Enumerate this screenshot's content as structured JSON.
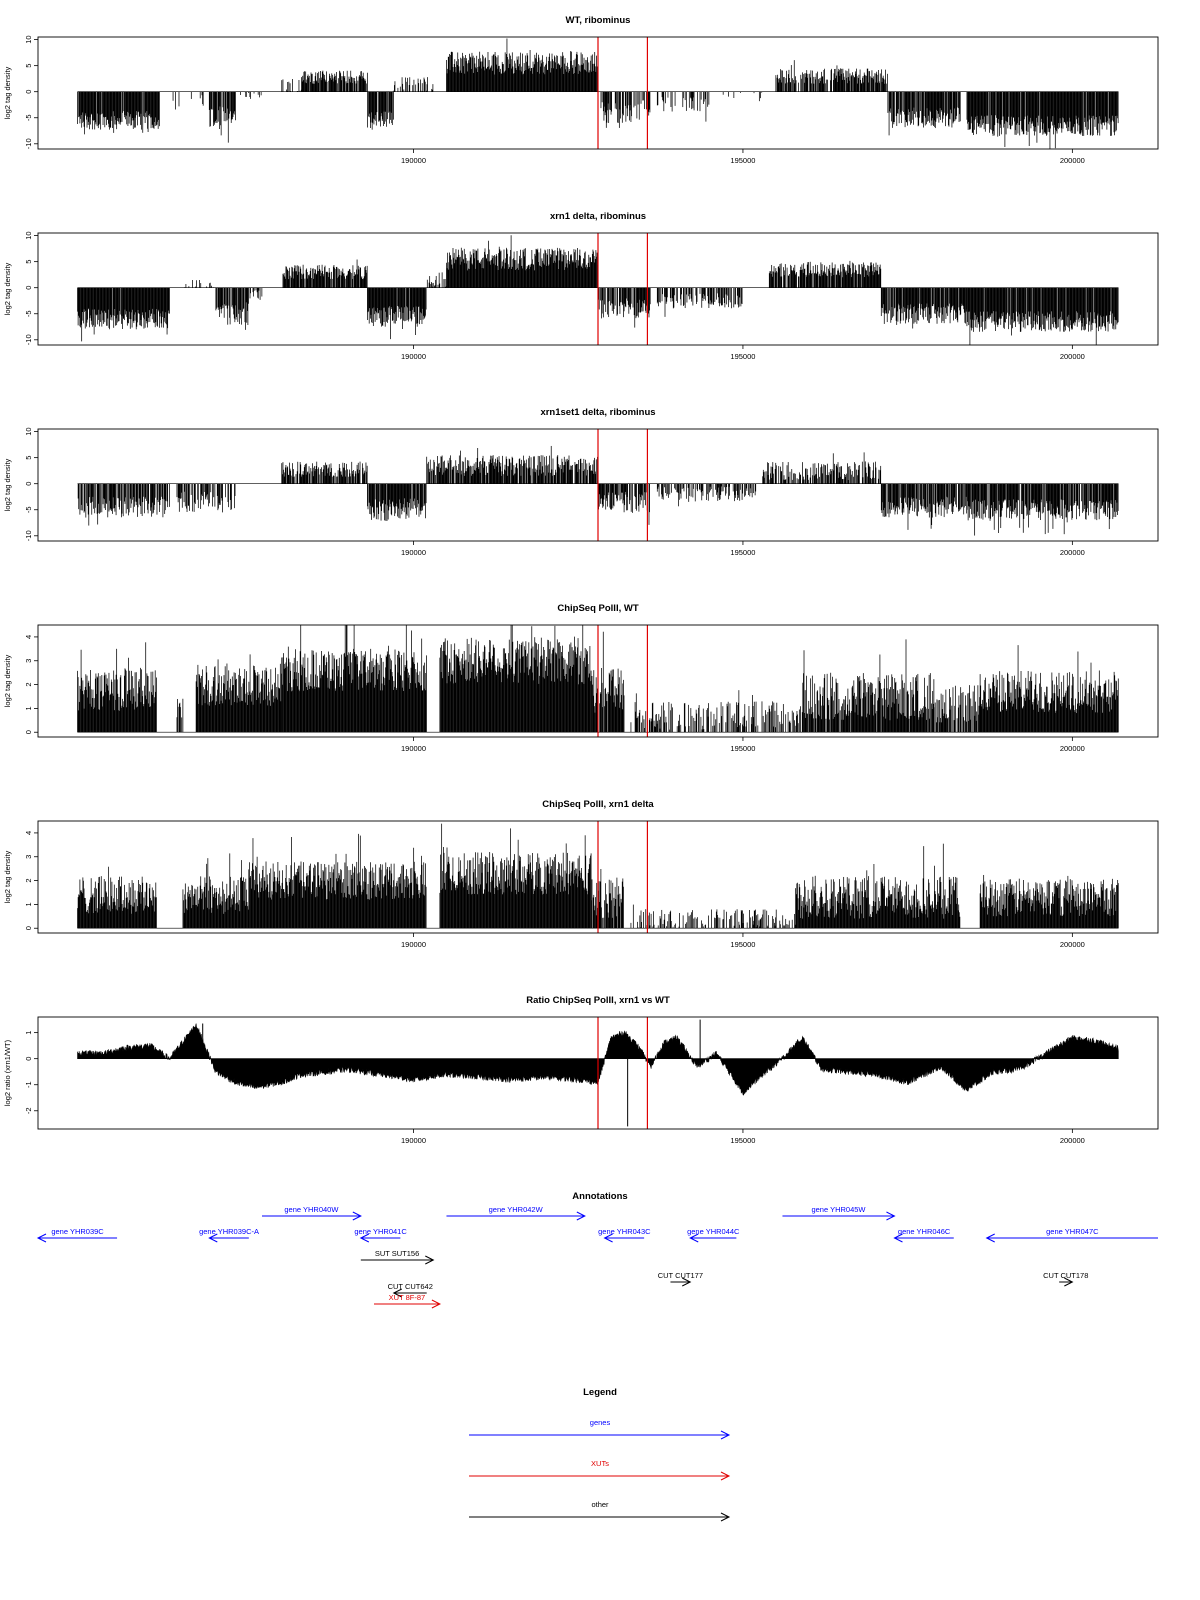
{
  "chart_data": [
    {
      "type": "bar",
      "title": "WT, ribominus",
      "xlabel": "",
      "ylabel": "log2 tag density",
      "xlim": [
        184300,
        201300
      ],
      "ylim": [
        -11,
        10.5
      ],
      "yticks": [
        10,
        5,
        0,
        -5,
        -10
      ],
      "yticklabels": [
        "10",
        "5",
        "0",
        "-5",
        "-10"
      ],
      "xticks": [
        190000,
        195000,
        200000
      ],
      "xticklabels": [
        "190000",
        "195000",
        "200000"
      ],
      "grid": false,
      "markers_x": [
        192800,
        193550
      ],
      "marker_color": "#e00000",
      "series": [
        {
          "color": "#000000",
          "segments": [
            {
              "start": 184900,
              "end": 186150,
              "level": -5.5,
              "noise": 1.8,
              "density": 0.95
            },
            {
              "start": 186350,
              "end": 186450,
              "level": -3,
              "noise": 1.5,
              "density": 0.3
            },
            {
              "start": 186600,
              "end": 186900,
              "level": -1.5,
              "noise": 1.2,
              "density": 0.2
            },
            {
              "start": 187300,
              "end": 187700,
              "level": -0.8,
              "noise": 0.8,
              "density": 0.2
            },
            {
              "start": 186900,
              "end": 187300,
              "level": -5,
              "noise": 2.2,
              "density": 0.9
            },
            {
              "start": 188000,
              "end": 188300,
              "level": 1.2,
              "noise": 1.5,
              "density": 0.5
            },
            {
              "start": 188300,
              "end": 189300,
              "level": 2.8,
              "noise": 1.3,
              "density": 0.8
            },
            {
              "start": 189300,
              "end": 189700,
              "level": -5.5,
              "noise": 1.8,
              "density": 0.9
            },
            {
              "start": 189700,
              "end": 190300,
              "level": 1.5,
              "noise": 1.5,
              "density": 0.4
            },
            {
              "start": 190500,
              "end": 192800,
              "level": 5.5,
              "noise": 2.2,
              "density": 1.0
            },
            {
              "start": 192800,
              "end": 193300,
              "level": -4,
              "noise": 2,
              "density": 0.7
            },
            {
              "start": 193300,
              "end": 193600,
              "level": -3.5,
              "noise": 2,
              "density": 0.5
            },
            {
              "start": 193700,
              "end": 194500,
              "level": -2.5,
              "noise": 1.5,
              "density": 0.35
            },
            {
              "start": 194700,
              "end": 195300,
              "level": -1,
              "noise": 1,
              "density": 0.2
            },
            {
              "start": 195500,
              "end": 197200,
              "level": 3,
              "noise": 1.5,
              "density": 0.85
            },
            {
              "start": 197200,
              "end": 198300,
              "level": -5,
              "noise": 2,
              "density": 0.9
            },
            {
              "start": 198400,
              "end": 200700,
              "level": -6.5,
              "noise": 2,
              "density": 0.95
            }
          ]
        }
      ]
    },
    {
      "type": "bar",
      "title": "xrn1 delta, ribominus",
      "xlabel": "",
      "ylabel": "log2 tag density",
      "xlim": [
        184300,
        201300
      ],
      "ylim": [
        -11,
        10.5
      ],
      "yticks": [
        10,
        5,
        0,
        -5,
        -10
      ],
      "yticklabels": [
        "10",
        "5",
        "0",
        "-5",
        "-10"
      ],
      "xticks": [
        190000,
        195000,
        200000
      ],
      "xticklabels": [
        "190000",
        "195000",
        "200000"
      ],
      "grid": false,
      "markers_x": [
        192800,
        193550
      ],
      "marker_color": "#e00000",
      "series": [
        {
          "color": "#000000",
          "segments": [
            {
              "start": 184900,
              "end": 186300,
              "level": -6,
              "noise": 2,
              "density": 0.97
            },
            {
              "start": 186500,
              "end": 187000,
              "level": 0.8,
              "noise": 1,
              "density": 0.3
            },
            {
              "start": 187000,
              "end": 187500,
              "level": -5,
              "noise": 2.2,
              "density": 0.9
            },
            {
              "start": 187500,
              "end": 187700,
              "level": -1.5,
              "noise": 1,
              "density": 0.5
            },
            {
              "start": 188000,
              "end": 189300,
              "level": 3,
              "noise": 1.4,
              "density": 0.9
            },
            {
              "start": 189300,
              "end": 190200,
              "level": -5.5,
              "noise": 2,
              "density": 0.95
            },
            {
              "start": 190200,
              "end": 190500,
              "level": 1.5,
              "noise": 1.5,
              "density": 0.5
            },
            {
              "start": 190500,
              "end": 192800,
              "level": 5.5,
              "noise": 2.2,
              "density": 1.0
            },
            {
              "start": 192800,
              "end": 193600,
              "level": -4,
              "noise": 2,
              "density": 0.75
            },
            {
              "start": 193700,
              "end": 195000,
              "level": -2.5,
              "noise": 1.5,
              "density": 0.6
            },
            {
              "start": 195400,
              "end": 197100,
              "level": 3.5,
              "noise": 1.5,
              "density": 0.9
            },
            {
              "start": 197100,
              "end": 198400,
              "level": -5,
              "noise": 2,
              "density": 0.95
            },
            {
              "start": 198400,
              "end": 200700,
              "level": -6.5,
              "noise": 2,
              "density": 0.97
            }
          ]
        }
      ]
    },
    {
      "type": "bar",
      "title": "xrn1set1 delta, ribominus",
      "xlabel": "",
      "ylabel": "log2 tag density",
      "xlim": [
        184300,
        201300
      ],
      "ylim": [
        -11,
        10.5
      ],
      "yticks": [
        10,
        5,
        0,
        -5,
        -10
      ],
      "yticklabels": [
        "10",
        "5",
        "0",
        "-5",
        "-10"
      ],
      "xticks": [
        190000,
        195000,
        200000
      ],
      "xticklabels": [
        "190000",
        "195000",
        "200000"
      ],
      "grid": false,
      "markers_x": [
        192800,
        193550
      ],
      "marker_color": "#e00000",
      "series": [
        {
          "color": "#000000",
          "segments": [
            {
              "start": 184900,
              "end": 186300,
              "level": -4.5,
              "noise": 2,
              "density": 0.75
            },
            {
              "start": 186400,
              "end": 187300,
              "level": -3.5,
              "noise": 2,
              "density": 0.6
            },
            {
              "start": 188000,
              "end": 189300,
              "level": 2.8,
              "noise": 1.5,
              "density": 0.85
            },
            {
              "start": 189300,
              "end": 190200,
              "level": -5,
              "noise": 2.2,
              "density": 0.9
            },
            {
              "start": 190200,
              "end": 192800,
              "level": 3.5,
              "noise": 2,
              "density": 0.85
            },
            {
              "start": 192800,
              "end": 193600,
              "level": -3.5,
              "noise": 2,
              "density": 0.7
            },
            {
              "start": 193700,
              "end": 195200,
              "level": -2,
              "noise": 1.5,
              "density": 0.5
            },
            {
              "start": 195300,
              "end": 197100,
              "level": 2.5,
              "noise": 1.8,
              "density": 0.7
            },
            {
              "start": 197100,
              "end": 198400,
              "level": -4.5,
              "noise": 2,
              "density": 0.85
            },
            {
              "start": 198400,
              "end": 200700,
              "level": -5,
              "noise": 2,
              "density": 0.85
            }
          ]
        }
      ]
    },
    {
      "type": "bar",
      "title": "ChipSeq PolII, WT",
      "xlabel": "",
      "ylabel": "log2 tag density",
      "xlim": [
        184300,
        201300
      ],
      "ylim": [
        -0.2,
        4.5
      ],
      "yticks": [
        0,
        1,
        2,
        3,
        4
      ],
      "yticklabels": [
        "0",
        "1",
        "2",
        "3",
        "4"
      ],
      "xticks": [
        190000,
        195000,
        200000
      ],
      "xticklabels": [
        "190000",
        "195000",
        "200000"
      ],
      "grid": false,
      "markers_x": [
        192800,
        193550
      ],
      "marker_color": "#e00000",
      "series": [
        {
          "color": "#000000",
          "segments": [
            {
              "start": 184900,
              "end": 186100,
              "level": 1.8,
              "noise": 0.9,
              "density": 1.0
            },
            {
              "start": 186400,
              "end": 186500,
              "level": 1.0,
              "noise": 0.5,
              "density": 0.5
            },
            {
              "start": 186700,
              "end": 188000,
              "level": 2.0,
              "noise": 0.9,
              "density": 1.0
            },
            {
              "start": 188000,
              "end": 190200,
              "level": 2.6,
              "noise": 0.9,
              "density": 1.0
            },
            {
              "start": 190400,
              "end": 192700,
              "level": 3.0,
              "noise": 1.0,
              "density": 1.0
            },
            {
              "start": 192700,
              "end": 193200,
              "level": 1.8,
              "noise": 1.0,
              "density": 0.9
            },
            {
              "start": 193300,
              "end": 195900,
              "level": 0.7,
              "noise": 0.6,
              "density": 0.5
            },
            {
              "start": 195900,
              "end": 197900,
              "level": 1.5,
              "noise": 1.0,
              "density": 0.95
            },
            {
              "start": 197900,
              "end": 198600,
              "level": 1.2,
              "noise": 0.8,
              "density": 0.8
            },
            {
              "start": 198600,
              "end": 200700,
              "level": 1.7,
              "noise": 0.9,
              "density": 1.0
            }
          ]
        }
      ]
    },
    {
      "type": "bar",
      "title": "ChipSeq PolII, xrn1 delta",
      "xlabel": "",
      "ylabel": "log2 tag density",
      "xlim": [
        184300,
        201300
      ],
      "ylim": [
        -0.2,
        4.5
      ],
      "yticks": [
        0,
        1,
        2,
        3,
        4
      ],
      "yticklabels": [
        "0",
        "1",
        "2",
        "3",
        "4"
      ],
      "xticks": [
        190000,
        195000,
        200000
      ],
      "xticklabels": [
        "190000",
        "195000",
        "200000"
      ],
      "grid": false,
      "markers_x": [
        192800,
        193550
      ],
      "marker_color": "#e00000",
      "series": [
        {
          "color": "#000000",
          "segments": [
            {
              "start": 184900,
              "end": 186100,
              "level": 1.4,
              "noise": 0.8,
              "density": 1.0
            },
            {
              "start": 186500,
              "end": 187500,
              "level": 1.4,
              "noise": 0.8,
              "density": 1.0
            },
            {
              "start": 187500,
              "end": 190200,
              "level": 2.0,
              "noise": 0.8,
              "density": 1.0
            },
            {
              "start": 190400,
              "end": 192700,
              "level": 2.3,
              "noise": 0.9,
              "density": 1.0
            },
            {
              "start": 192700,
              "end": 193200,
              "level": 1.3,
              "noise": 0.9,
              "density": 0.9
            },
            {
              "start": 193300,
              "end": 195800,
              "level": 0.4,
              "noise": 0.4,
              "density": 0.45
            },
            {
              "start": 195800,
              "end": 198300,
              "level": 1.3,
              "noise": 0.9,
              "density": 1.0
            },
            {
              "start": 198600,
              "end": 200700,
              "level": 1.3,
              "noise": 0.8,
              "density": 1.0
            }
          ]
        }
      ]
    },
    {
      "type": "area",
      "title": "Ratio ChipSeq PolII, xrn1 vs WT",
      "xlabel": "",
      "ylabel": "log2 ratio (xrn1/WT)",
      "xlim": [
        184300,
        201300
      ],
      "ylim": [
        -2.7,
        1.6
      ],
      "yticks": [
        1,
        0,
        -1,
        -2
      ],
      "yticklabels": [
        "1",
        "0",
        "-1",
        "-2"
      ],
      "xticks": [
        190000,
        195000,
        200000
      ],
      "xticklabels": [
        "190000",
        "195000",
        "200000"
      ],
      "grid": false,
      "markers_x": [
        192800,
        193550
      ],
      "marker_color": "#e00000",
      "series": [
        {
          "color": "#000000",
          "x": [
            184900,
            185300,
            185600,
            186000,
            186300,
            186700,
            187000,
            187300,
            187600,
            188000,
            188300,
            188700,
            189000,
            189500,
            190000,
            190500,
            191000,
            191500,
            192000,
            192500,
            192800,
            193000,
            193200,
            193400,
            193600,
            193800,
            194000,
            194300,
            194600,
            195000,
            195300,
            195600,
            195900,
            196200,
            196600,
            197000,
            197500,
            198000,
            198400,
            198800,
            199200,
            199600,
            200000,
            200300,
            200700
          ],
          "y": [
            0.2,
            0.2,
            0.4,
            0.5,
            0.0,
            1.3,
            -0.5,
            -0.9,
            -1.1,
            -0.9,
            -0.6,
            -0.5,
            -0.4,
            -0.6,
            -0.8,
            -0.6,
            -0.7,
            -0.8,
            -0.7,
            -0.8,
            -0.9,
            0.8,
            1.0,
            0.5,
            -0.3,
            0.6,
            0.8,
            -0.3,
            0.2,
            -1.3,
            -0.6,
            0.0,
            0.8,
            -0.4,
            -0.5,
            -0.6,
            -0.9,
            -0.3,
            -1.2,
            -0.5,
            -0.4,
            0.2,
            0.8,
            0.7,
            0.4
          ]
        }
      ]
    }
  ],
  "annotations": {
    "title": "Annotations",
    "xlim": [
      184300,
      201300
    ],
    "items": [
      {
        "label": "gene YHR039C",
        "start": 185500,
        "end": 184300,
        "row": 0,
        "color": "#0000ff"
      },
      {
        "label": "gene YHR039C-A",
        "start": 187500,
        "end": 186900,
        "row": 0,
        "color": "#0000ff"
      },
      {
        "label": "gene YHR040W",
        "start": 187700,
        "end": 189200,
        "row": -1,
        "color": "#0000ff"
      },
      {
        "label": "gene YHR041C",
        "start": 189800,
        "end": 189200,
        "row": 0,
        "color": "#0000ff"
      },
      {
        "label": "gene YHR042W",
        "start": 190500,
        "end": 192600,
        "row": -1,
        "color": "#0000ff"
      },
      {
        "label": "gene YHR043C",
        "start": 193500,
        "end": 192900,
        "row": 0,
        "color": "#0000ff"
      },
      {
        "label": "gene YHR044C",
        "start": 194900,
        "end": 194200,
        "row": 0,
        "color": "#0000ff"
      },
      {
        "label": "gene YHR045W",
        "start": 195600,
        "end": 197300,
        "row": -1,
        "color": "#0000ff"
      },
      {
        "label": "gene YHR046C",
        "start": 198200,
        "end": 197300,
        "row": 0,
        "color": "#0000ff"
      },
      {
        "label": "gene YHR047C",
        "start": 201300,
        "end": 198700,
        "row": 0,
        "color": "#0000ff"
      },
      {
        "label": "SUT SUT156",
        "start": 189200,
        "end": 190300,
        "row": 1,
        "color": "#000000"
      },
      {
        "label": "CUT CUT177",
        "start": 193900,
        "end": 194200,
        "row": 2,
        "color": "#000000"
      },
      {
        "label": "CUT CUT178",
        "start": 199800,
        "end": 200000,
        "row": 2,
        "color": "#000000"
      },
      {
        "label": "CUT CUT642",
        "start": 190200,
        "end": 189700,
        "row": 2.5,
        "color": "#000000"
      },
      {
        "label": "XUT 8F-87",
        "start": 189400,
        "end": 190400,
        "row": 3,
        "color": "#e00000"
      }
    ]
  },
  "legend": {
    "title": "Legend",
    "items": [
      {
        "label": "genes",
        "color": "#0000ff"
      },
      {
        "label": "XUTs",
        "color": "#e00000"
      },
      {
        "label": "other",
        "color": "#000000"
      }
    ]
  }
}
